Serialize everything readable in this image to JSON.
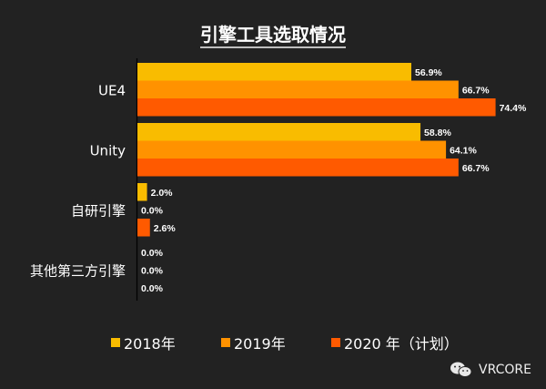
{
  "chart_data": {
    "type": "bar",
    "orientation": "horizontal",
    "title": "引擎工具选取情况",
    "categories": [
      "UE4",
      "Unity",
      "自研引擎",
      "其他第三方引擎"
    ],
    "series": [
      {
        "name": "2018年",
        "color": "#F9BC00",
        "values": [
          56.9,
          58.8,
          2.0,
          0.0
        ],
        "labels": [
          "56.9%",
          "58.8%",
          "2.0%",
          "0.0%"
        ]
      },
      {
        "name": "2019年",
        "color": "#FF9200",
        "values": [
          66.7,
          64.1,
          0.0,
          0.0
        ],
        "labels": [
          "66.7%",
          "64.1%",
          "0.0%",
          "0.0%"
        ]
      },
      {
        "name": "2020 年（计划）",
        "color": "#FF5A00",
        "values": [
          74.4,
          66.7,
          2.6,
          0.0
        ],
        "labels": [
          "74.4%",
          "66.7%",
          "2.6%",
          "0.0%"
        ]
      }
    ],
    "xlabel": "",
    "ylabel": "",
    "xlim": [
      0,
      85
    ],
    "grid": false,
    "legend_position": "bottom",
    "value_unit": "%"
  },
  "watermark": "VRCORE"
}
